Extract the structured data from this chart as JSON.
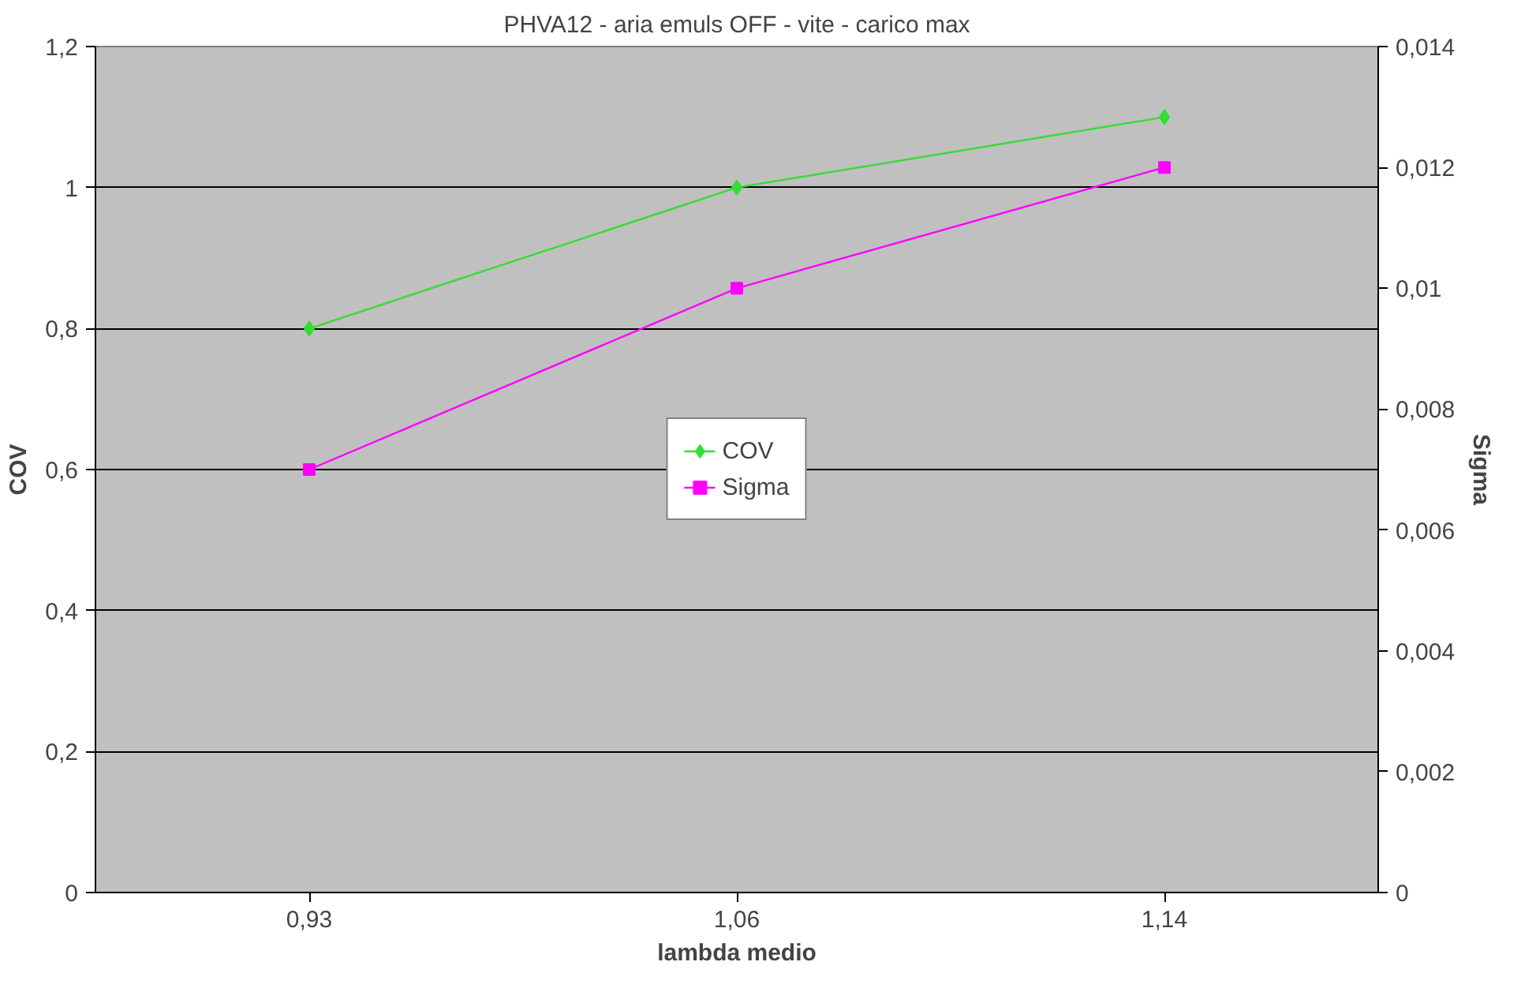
{
  "chart_data": {
    "type": "line",
    "title": "PHVA12 - aria emuls OFF - vite - carico max",
    "xlabel": "lambda medio",
    "ylabel": "COV",
    "y2label": "Sigma",
    "categories": [
      "0,93",
      "1,06",
      "1,14"
    ],
    "series": [
      {
        "name": "COV",
        "color": "#33dd33",
        "marker": "diamond",
        "values": [
          0.8,
          1.0,
          1.1
        ]
      },
      {
        "name": "Sigma",
        "color": "#ff00ff",
        "marker": "square",
        "axis": "y2",
        "values": [
          0.007,
          0.01,
          0.012
        ]
      }
    ],
    "ylim": [
      0,
      1.2
    ],
    "yticks": [
      0,
      {
        "value": 0.2,
        "label": "0,2"
      },
      {
        "value": 0.4,
        "label": "0,4"
      },
      {
        "value": 0.6,
        "label": "0,6"
      },
      {
        "value": 0.8,
        "label": "0,8"
      },
      1,
      {
        "value": 1.2,
        "label": "1,2"
      }
    ],
    "y2lim": [
      0,
      0.014
    ],
    "y2ticks": [
      0,
      {
        "value": 0.002,
        "label": "0,002"
      },
      {
        "value": 0.004,
        "label": "0,004"
      },
      {
        "value": 0.006,
        "label": "0,006"
      },
      {
        "value": 0.008,
        "label": "0,008"
      },
      {
        "value": 0.01,
        "label": "0,01"
      },
      {
        "value": 0.012,
        "label": "0,012"
      },
      {
        "value": 0.014,
        "label": "0,014"
      }
    ],
    "grid": "y",
    "legend": "center",
    "line_style": "solid"
  }
}
